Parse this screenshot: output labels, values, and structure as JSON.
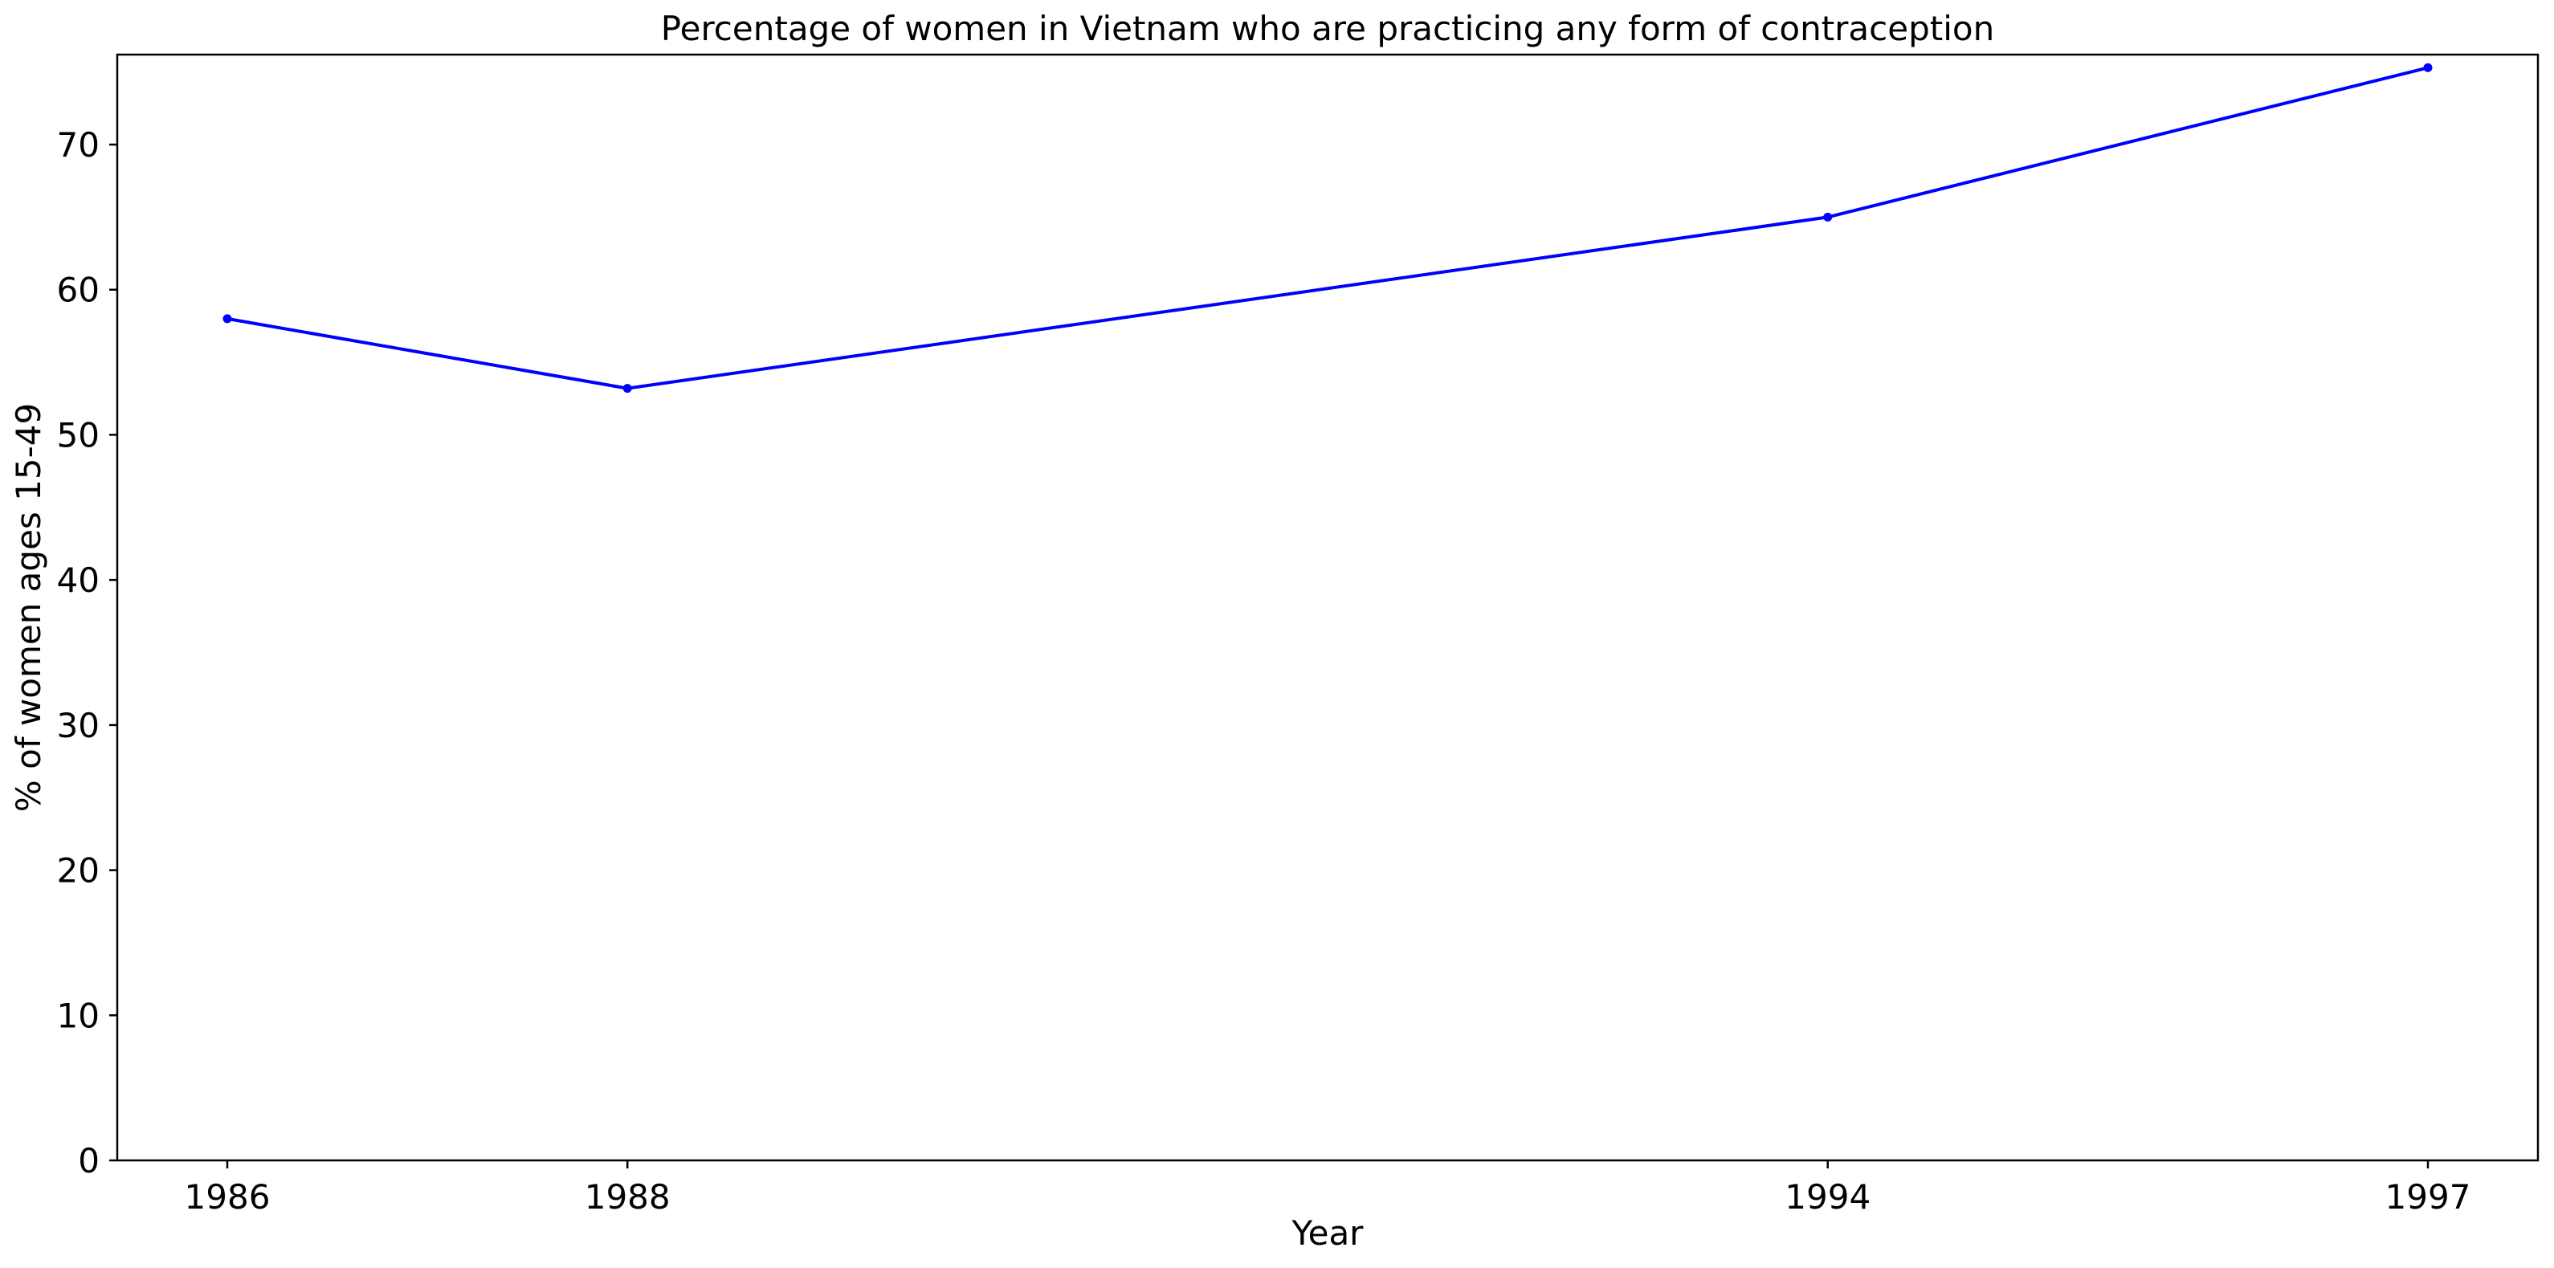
{
  "chart_data": {
    "type": "line",
    "title": "Percentage of women in Vietnam who are practicing any form of contraception",
    "xlabel": "Year",
    "ylabel": "% of women ages 15-49",
    "categories": [
      "1986",
      "1988",
      "1994",
      "1997"
    ],
    "series": [
      {
        "values": [
          58.0,
          53.2,
          65.0,
          75.3
        ],
        "color": "#0000ff",
        "marker": "dot"
      }
    ],
    "ylim": [
      0,
      76.2
    ],
    "yticks": [
      0,
      10,
      20,
      30,
      40,
      50,
      60,
      70
    ],
    "grid": false,
    "legend": "none"
  }
}
